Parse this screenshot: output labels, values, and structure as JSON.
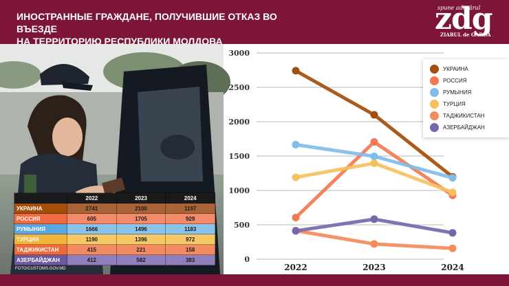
{
  "header": {
    "title_line1": "ИНОСТРАННЫЕ ГРАЖДАНЕ, ПОЛУЧИВШИЕ ОТКАЗ ВО ВЪЕЗДЕ",
    "title_line2": "НА ТЕРРИТОРИЮ РЕСПУБЛИКИ МОЛДОВА"
  },
  "logo": {
    "tagline": "spune adevărul",
    "word": "zdg",
    "sub": "ZIARUL de GARDĂ"
  },
  "photo_credit": "FOTO/CUSTOMS.GOV.MD",
  "colors": {
    "brand": "#7d1538"
  },
  "chart_data": {
    "type": "line",
    "categories": [
      "2022",
      "2023",
      "2024"
    ],
    "ylim": [
      0,
      3000
    ],
    "yticks": [
      "0",
      "500",
      "1000",
      "1500",
      "2000",
      "2500",
      "3000"
    ],
    "series": [
      {
        "name": "УКРАИНА",
        "color": "#a34e0b",
        "values": [
          2741,
          2100,
          1197
        ]
      },
      {
        "name": "РОССИЯ",
        "color": "#f47850",
        "values": [
          605,
          1705,
          929
        ]
      },
      {
        "name": "РУМЫНИЯ",
        "color": "#80bde9",
        "values": [
          1666,
          1496,
          1183
        ]
      },
      {
        "name": "ТУРЦИЯ",
        "color": "#f6c15d",
        "values": [
          1190,
          1396,
          972
        ]
      },
      {
        "name": "ТАДЖИКИСТАН",
        "color": "#f28c5c",
        "values": [
          415,
          221,
          158
        ]
      },
      {
        "name": "АЗЕРБАЙДЖАН",
        "color": "#7a67ab",
        "values": [
          412,
          582,
          383
        ]
      }
    ],
    "legend_position": "top-right",
    "grid": true
  },
  "table": {
    "headers": [
      "",
      "2022",
      "2023",
      "2024"
    ],
    "rows": [
      {
        "name": "УКРАИНА",
        "name_bg": "#a34e0b",
        "cell_bg": "#a86437",
        "values": [
          "2741",
          "2100",
          "1197"
        ]
      },
      {
        "name": "РОССИЯ",
        "name_bg": "#f26a3f",
        "cell_bg": "#f48a69",
        "values": [
          "605",
          "1705",
          "929"
        ]
      },
      {
        "name": "РУМЫНИЯ",
        "name_bg": "#5aa6de",
        "cell_bg": "#8cc3ea",
        "values": [
          "1666",
          "1496",
          "1183"
        ]
      },
      {
        "name": "ТУРЦИЯ",
        "name_bg": "#f3b23a",
        "cell_bg": "#f7c866",
        "values": [
          "1190",
          "1396",
          "972"
        ]
      },
      {
        "name": "ТАДЖИКИСТАН",
        "name_bg": "#ef6a3a",
        "cell_bg": "#f28a62",
        "values": [
          "415",
          "221",
          "158"
        ]
      },
      {
        "name": "АЗЕРБАЙДЖАН",
        "name_bg": "#6b5aa0",
        "cell_bg": "#8f7fbd",
        "values": [
          "412",
          "582",
          "383"
        ]
      }
    ]
  }
}
